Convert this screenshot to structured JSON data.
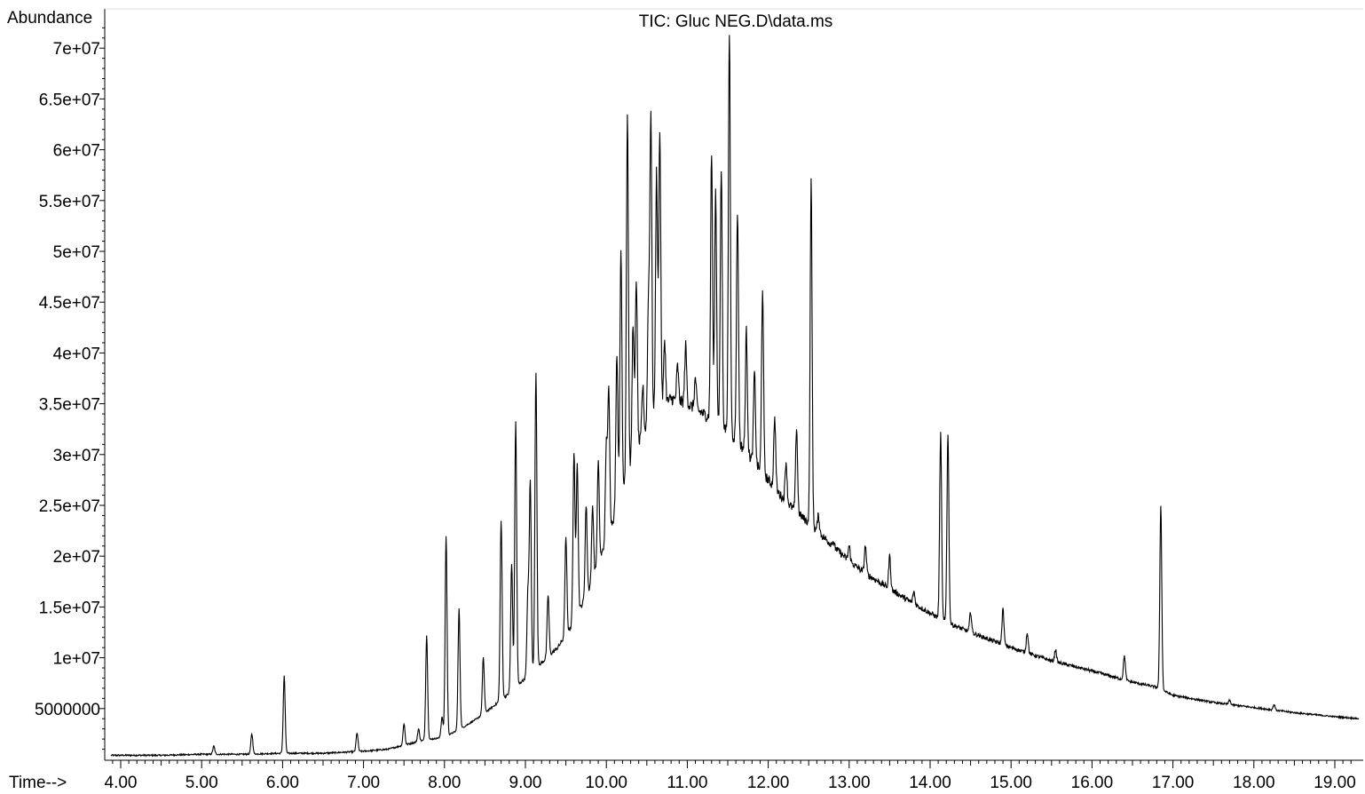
{
  "chart_data": {
    "type": "line",
    "title": "TIC: Gluc NEG.D\\data.ms",
    "ylabel": "Abundance",
    "xlabel": "Time-->",
    "xlim": [
      3.85,
      19.3
    ],
    "ylim": [
      0,
      72500000
    ],
    "x_ticks": [
      4,
      5,
      6,
      7,
      8,
      9,
      10,
      11,
      12,
      13,
      14,
      15,
      16,
      17,
      18,
      19
    ],
    "x_tick_labels": [
      "4.00",
      "5.00",
      "6.00",
      "7.00",
      "8.00",
      "9.00",
      "10.00",
      "11.00",
      "12.00",
      "13.00",
      "14.00",
      "15.00",
      "16.00",
      "17.00",
      "18.00",
      "19.00"
    ],
    "y_ticks": [
      5000000,
      10000000,
      15000000,
      20000000,
      25000000,
      30000000,
      35000000,
      40000000,
      45000000,
      50000000,
      55000000,
      60000000,
      65000000,
      70000000
    ],
    "y_tick_labels": [
      "5000000",
      "1e+07",
      "1.5e+07",
      "2e+07",
      "2.5e+07",
      "3e+07",
      "3.5e+07",
      "4e+07",
      "4.5e+07",
      "5e+07",
      "5.5e+07",
      "6e+07",
      "6.5e+07",
      "7e+07"
    ],
    "grid": false,
    "baseline": [
      [
        3.85,
        400000
      ],
      [
        4.5,
        400000
      ],
      [
        5.0,
        500000
      ],
      [
        5.5,
        500000
      ],
      [
        6.0,
        600000
      ],
      [
        6.5,
        600000
      ],
      [
        7.0,
        800000
      ],
      [
        7.3,
        1000000
      ],
      [
        7.5,
        1400000
      ],
      [
        7.7,
        1800000
      ],
      [
        8.0,
        2200000
      ],
      [
        8.2,
        3000000
      ],
      [
        8.4,
        4000000
      ],
      [
        8.6,
        5200000
      ],
      [
        8.8,
        6500000
      ],
      [
        9.0,
        8000000
      ],
      [
        9.2,
        9500000
      ],
      [
        9.4,
        11000000
      ],
      [
        9.6,
        13500000
      ],
      [
        9.8,
        17000000
      ],
      [
        10.0,
        21500000
      ],
      [
        10.2,
        26500000
      ],
      [
        10.4,
        31000000
      ],
      [
        10.6,
        34000000
      ],
      [
        10.8,
        35500000
      ],
      [
        11.0,
        35000000
      ],
      [
        11.2,
        34000000
      ],
      [
        11.4,
        33000000
      ],
      [
        11.6,
        31500000
      ],
      [
        11.8,
        29500000
      ],
      [
        12.0,
        27500000
      ],
      [
        12.2,
        25500000
      ],
      [
        12.4,
        24000000
      ],
      [
        12.6,
        22500000
      ],
      [
        12.8,
        21000000
      ],
      [
        13.0,
        19500000
      ],
      [
        13.2,
        18300000
      ],
      [
        13.4,
        17300000
      ],
      [
        13.6,
        16300000
      ],
      [
        13.8,
        15300000
      ],
      [
        14.0,
        14400000
      ],
      [
        14.2,
        13500000
      ],
      [
        14.5,
        12500000
      ],
      [
        15.0,
        11000000
      ],
      [
        15.5,
        9700000
      ],
      [
        16.0,
        8700000
      ],
      [
        16.5,
        7600000
      ],
      [
        16.8,
        7100000
      ],
      [
        17.0,
        6300000
      ],
      [
        17.5,
        5600000
      ],
      [
        18.0,
        5100000
      ],
      [
        18.5,
        4600000
      ],
      [
        19.0,
        4200000
      ],
      [
        19.3,
        4000000
      ]
    ],
    "peaks": [
      [
        5.15,
        1300000
      ],
      [
        5.62,
        2500000
      ],
      [
        6.02,
        8200000
      ],
      [
        6.92,
        2600000
      ],
      [
        7.5,
        3500000
      ],
      [
        7.68,
        3000000
      ],
      [
        7.78,
        12200000
      ],
      [
        7.97,
        4200000
      ],
      [
        8.02,
        22000000
      ],
      [
        8.18,
        14800000
      ],
      [
        8.48,
        10000000
      ],
      [
        8.7,
        23500000
      ],
      [
        8.83,
        19200000
      ],
      [
        8.88,
        33300000
      ],
      [
        9.03,
        16000000
      ],
      [
        9.06,
        27200000
      ],
      [
        9.13,
        38200000
      ],
      [
        9.28,
        16200000
      ],
      [
        9.5,
        21700000
      ],
      [
        9.6,
        30200000
      ],
      [
        9.64,
        29300000
      ],
      [
        9.75,
        25000000
      ],
      [
        9.83,
        24900000
      ],
      [
        9.9,
        29300000
      ],
      [
        10.0,
        30900000
      ],
      [
        10.03,
        36100000
      ],
      [
        10.13,
        40000000
      ],
      [
        10.18,
        50400000
      ],
      [
        10.26,
        63600000
      ],
      [
        10.33,
        42900000
      ],
      [
        10.37,
        47300000
      ],
      [
        10.45,
        36700000
      ],
      [
        10.52,
        45000000
      ],
      [
        10.55,
        63400000
      ],
      [
        10.62,
        57700000
      ],
      [
        10.66,
        62100000
      ],
      [
        10.72,
        41300000
      ],
      [
        10.88,
        38700000
      ],
      [
        10.98,
        40700000
      ],
      [
        11.1,
        37500000
      ],
      [
        11.3,
        59700000
      ],
      [
        11.35,
        56000000
      ],
      [
        11.42,
        58000000
      ],
      [
        11.52,
        71500000
      ],
      [
        11.62,
        54000000
      ],
      [
        11.73,
        42200000
      ],
      [
        11.83,
        38000000
      ],
      [
        11.93,
        46400000
      ],
      [
        12.08,
        33600000
      ],
      [
        12.22,
        29300000
      ],
      [
        12.35,
        32700000
      ],
      [
        12.53,
        57000000
      ],
      [
        12.62,
        24000000
      ],
      [
        12.8,
        21500000
      ],
      [
        13.0,
        21000000
      ],
      [
        13.2,
        21000000
      ],
      [
        13.5,
        20000000
      ],
      [
        13.8,
        16500000
      ],
      [
        14.13,
        32000000
      ],
      [
        14.22,
        32000000
      ],
      [
        14.5,
        14500000
      ],
      [
        14.9,
        14800000
      ],
      [
        15.2,
        12500000
      ],
      [
        15.55,
        10800000
      ],
      [
        16.4,
        10200000
      ],
      [
        16.85,
        25000000
      ],
      [
        17.7,
        5800000
      ],
      [
        18.25,
        5400000
      ]
    ],
    "color": "#000000"
  }
}
